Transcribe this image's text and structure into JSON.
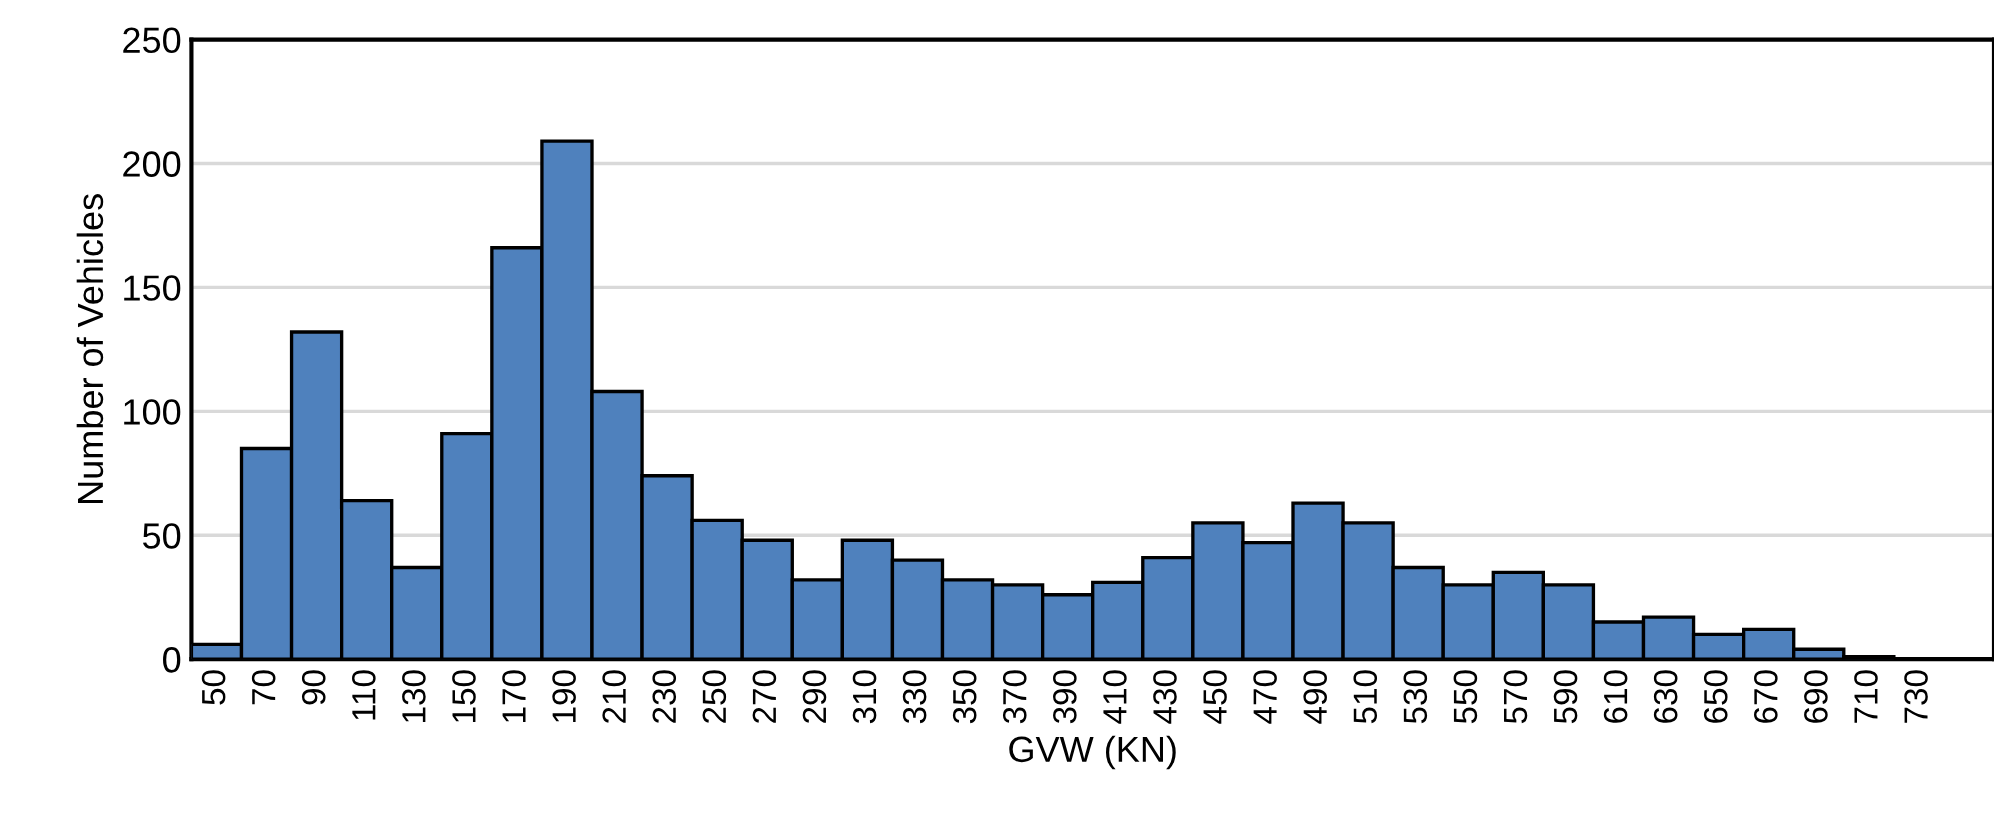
{
  "chart_data": {
    "type": "bar",
    "xlabel": "GVW (KN)",
    "ylabel": "Number of Vehicles",
    "categories": [
      "50",
      "70",
      "90",
      "110",
      "130",
      "150",
      "170",
      "190",
      "210",
      "230",
      "250",
      "270",
      "290",
      "310",
      "330",
      "350",
      "370",
      "390",
      "410",
      "430",
      "450",
      "470",
      "490",
      "510",
      "530",
      "550",
      "570",
      "590",
      "610",
      "630",
      "650",
      "670",
      "690",
      "710",
      "730",
      null
    ],
    "values": [
      6,
      85,
      132,
      64,
      37,
      91,
      166,
      209,
      108,
      74,
      56,
      48,
      32,
      48,
      40,
      32,
      30,
      26,
      31,
      41,
      55,
      47,
      63,
      55,
      37,
      30,
      35,
      30,
      15,
      17,
      10,
      12,
      4,
      1,
      0,
      0
    ],
    "color": "#4f81bd",
    "ylim": [
      0,
      250
    ],
    "yticks": [
      0,
      50,
      100,
      150,
      200,
      250
    ],
    "grid": "y",
    "legend": false
  }
}
